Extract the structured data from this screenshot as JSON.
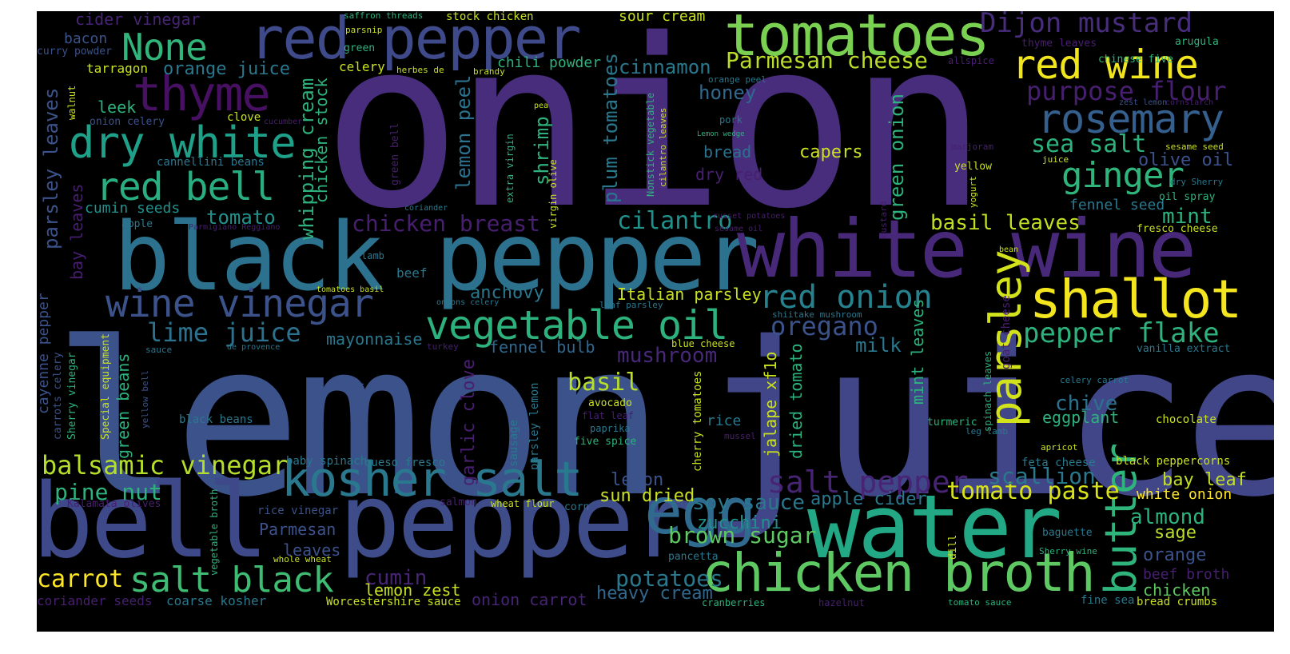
{
  "words": {
    "onion": "onion",
    "lemon": "lemon",
    "juice": "juice",
    "black_pepper": "black pepper",
    "bell": "bell",
    "pepper": "pepper",
    "white_wine": "white wine",
    "water": "water",
    "red_pepper": "red pepper",
    "tomatoes": "tomatoes",
    "chicken_broth": "chicken broth",
    "kosher_salt": "kosher salt",
    "shallot": "shallot",
    "wine_vinegar": "wine vinegar",
    "vegetable_oil": "vegetable oil",
    "dry_white": "dry white",
    "red_bell": "red bell",
    "thyme": "thyme",
    "none": "None",
    "red_wine": "red wine",
    "rosemary": "rosemary",
    "parsley": "parsley",
    "butter": "butter",
    "egg": "egg",
    "salt_black": "salt black",
    "salt_pepper": "salt pepper",
    "red_onion": "red onion",
    "balsamic_vinegar": "balsamic vinegar",
    "dijon_mustard": "Dijon mustard",
    "parmesan_cheese": "Parmesan cheese",
    "purpose_flour": "purpose flour",
    "ginger": "ginger",
    "sea_salt": "sea salt",
    "pepper_flake": "pepper flake",
    "tomato_paste": "tomato paste",
    "scallion": "scallion",
    "brown_sugar": "brown sugar",
    "soy_sauce": "soy sauce",
    "lime_juice": "lime juice",
    "oregano": "oregano",
    "cilantro": "cilantro",
    "chicken_breast": "chicken breast",
    "basil_leaves": "basil leaves",
    "mushroom": "mushroom",
    "zucchini": "zucchini",
    "potatoes": "potatoes",
    "heavy_cream": "heavy cream",
    "cumin": "cumin",
    "carrot": "carrot",
    "pine_nut": "pine nut",
    "lemon_zest": "lemon zest",
    "onion_carrot": "onion carrot",
    "almond": "almond",
    "sage": "sage",
    "orange": "orange",
    "beef_broth": "beef broth",
    "chicken": "chicken",
    "bay_leaf": "bay leaf",
    "white_onion": "white onion",
    "chive": "chive",
    "eggplant": "eggplant",
    "mint": "mint",
    "fennel_seed": "fennel seed",
    "olive_oil": "olive oil",
    "cinnamon": "cinnamon",
    "honey": "honey",
    "bread": "bread",
    "dry_red": "dry red",
    "capers": "capers",
    "italian_parsley": "Italian parsley",
    "anchovy": "anchovy",
    "mayonnaise": "mayonnaise",
    "fennel_bulb": "fennel bulb",
    "milk": "milk",
    "basil": "basil",
    "sun_dried": "sun dried",
    "apple_cider": "apple cider",
    "parmesan": "Parmesan",
    "leaves": "leaves",
    "tomato": "tomato",
    "cumin_seeds": "cumin seeds",
    "leek": "leek",
    "orange_juice": "orange juice",
    "chili_powder": "chili powder",
    "sour_cream": "sour cream",
    "bacon": "bacon",
    "cider_vinegar": "cider vinegar",
    "tarragon": "tarragon",
    "celery": "celery",
    "parsley_leaves": "parsley leaves",
    "bay_leaves": "bay leaves",
    "green_beans": "green beans",
    "cayenne_pepper": "cayenne pepper",
    "whipping_cream": "whipping cream",
    "chicken_stock": "chicken stock",
    "plum_tomatoes": "plum tomatoes",
    "lemon_peel": "lemon peel",
    "shrimp": "shrimp",
    "green_onion": "green onion",
    "garlic_clove": "garlic clove",
    "mint_leaves": "mint leaves",
    "dried_tomato": "dried tomato",
    "jalape": "jalape xf1o",
    "rice": "rice",
    "five_spice": "five spice",
    "avocado": "avocado",
    "blue_cheese": "blue cheese",
    "coarse_kosher": "coarse kosher",
    "worcestershire": "Worcestershire sauce",
    "coriander_seeds": "coriander seeds",
    "black_beans": "black beans",
    "baby_spinach": "baby spinach",
    "queso_fresco": "queso fresco",
    "rice_vinegar": "rice vinegar",
    "kalamata": "Kalamata olives",
    "salmon": "salmon",
    "wheat_flour": "wheat flour",
    "corn": "corn",
    "pancetta": "pancetta",
    "cranberries": "cranberries",
    "hazelnut": "hazelnut",
    "tomato_sauce": "tomato sauce",
    "fine_sea": "fine sea",
    "bread_crumbs": "bread crumbs",
    "baguette": "baguette",
    "sherry_wine": "Sherry wine",
    "feta_cheese": "feta cheese",
    "black_peppercorns": "black peppercorns",
    "chocolate": "chocolate",
    "vanilla_extract": "vanilla extract",
    "apricot": "apricot",
    "celery_carrot": "celery carrot",
    "leg_lamb": "leg lamb",
    "turmeric": "turmeric",
    "goat_cheese": "goat cheese",
    "spinach_leaves": "spinach leaves",
    "oil_spray": "oil spray",
    "dry_sherry": "dry Sherry",
    "fresco_cheese": "fresco cheese",
    "sesame_seed": "sesame seed",
    "juice_small": "juice",
    "yellow": "yellow",
    "yogurt": "yogurt",
    "mustard": "mustard",
    "marjoram": "marjoram",
    "chinese_five": "chinese five",
    "arugula": "arugula",
    "thyme_leaves": "thyme leaves",
    "allspice": "allspice",
    "zest_lemon": "zest lemon",
    "cornstarch": "cornstarch",
    "orange_peel": "orange peel",
    "pork": "pork",
    "lemon_wedge": "Lemon wedge",
    "nonstick": "Nonstick vegetable",
    "cilantro_leaves": "cilantro leaves",
    "russet_potatoes": "russet potatoes",
    "sesame_oil": "sesame oil",
    "bean": "bean",
    "shiitake": "shiitake mushroom",
    "leaf_parsley": "leaf parsley",
    "onions_celery": "onions celery",
    "tomatoes_basil": "tomatoes basil",
    "turkey": "turkey",
    "flat_leaf": "flat leaf",
    "paprika": "paprika",
    "mussel": "mussel",
    "cherry_tomatoes": "cherry tomatoes",
    "sausage": "sausage",
    "parsley_lemon": "parsley lemon",
    "chicken_thigh": "chicken thigh",
    "de_provence": "de provence",
    "sauce": "sauce",
    "special_equipment": "Special equipment",
    "carrots_celery": "carrots celery",
    "sherry_vinegar": "Sherry vinegar",
    "yellow_bell": "yellow bell",
    "vegetable_broth": "vegetable broth",
    "whole_wheat": "whole wheat",
    "dill": "dill",
    "lamb": "lamb",
    "beef": "beef",
    "apple": "apple",
    "parmigiano": "Parmigiano Reggiano",
    "cannellini": "cannellini beans",
    "onion_celery": "onion celery",
    "clove": "clove",
    "cucumber": "cucumber",
    "walnut": "walnut",
    "curry_powder": "curry powder",
    "green": "green",
    "parsnip": "parsnip",
    "saffron": "saffron threads",
    "stock_chicken": "stock chicken",
    "herbes_de": "herbes de",
    "brandy": "brandy",
    "pea": "pea",
    "green_bell": "green bell",
    "extra_virgin": "extra virgin",
    "virgin_olive": "virgin olive",
    "coriander": "coriander",
    "lemon_slim": "lemon"
  },
  "colors": {
    "background": "#000000",
    "purple": "#440154",
    "indigo": "#3b528b",
    "blue": "#31688e",
    "teal": "#21918c",
    "green": "#35b779",
    "lime": "#90d743",
    "yellow": "#fde725"
  }
}
